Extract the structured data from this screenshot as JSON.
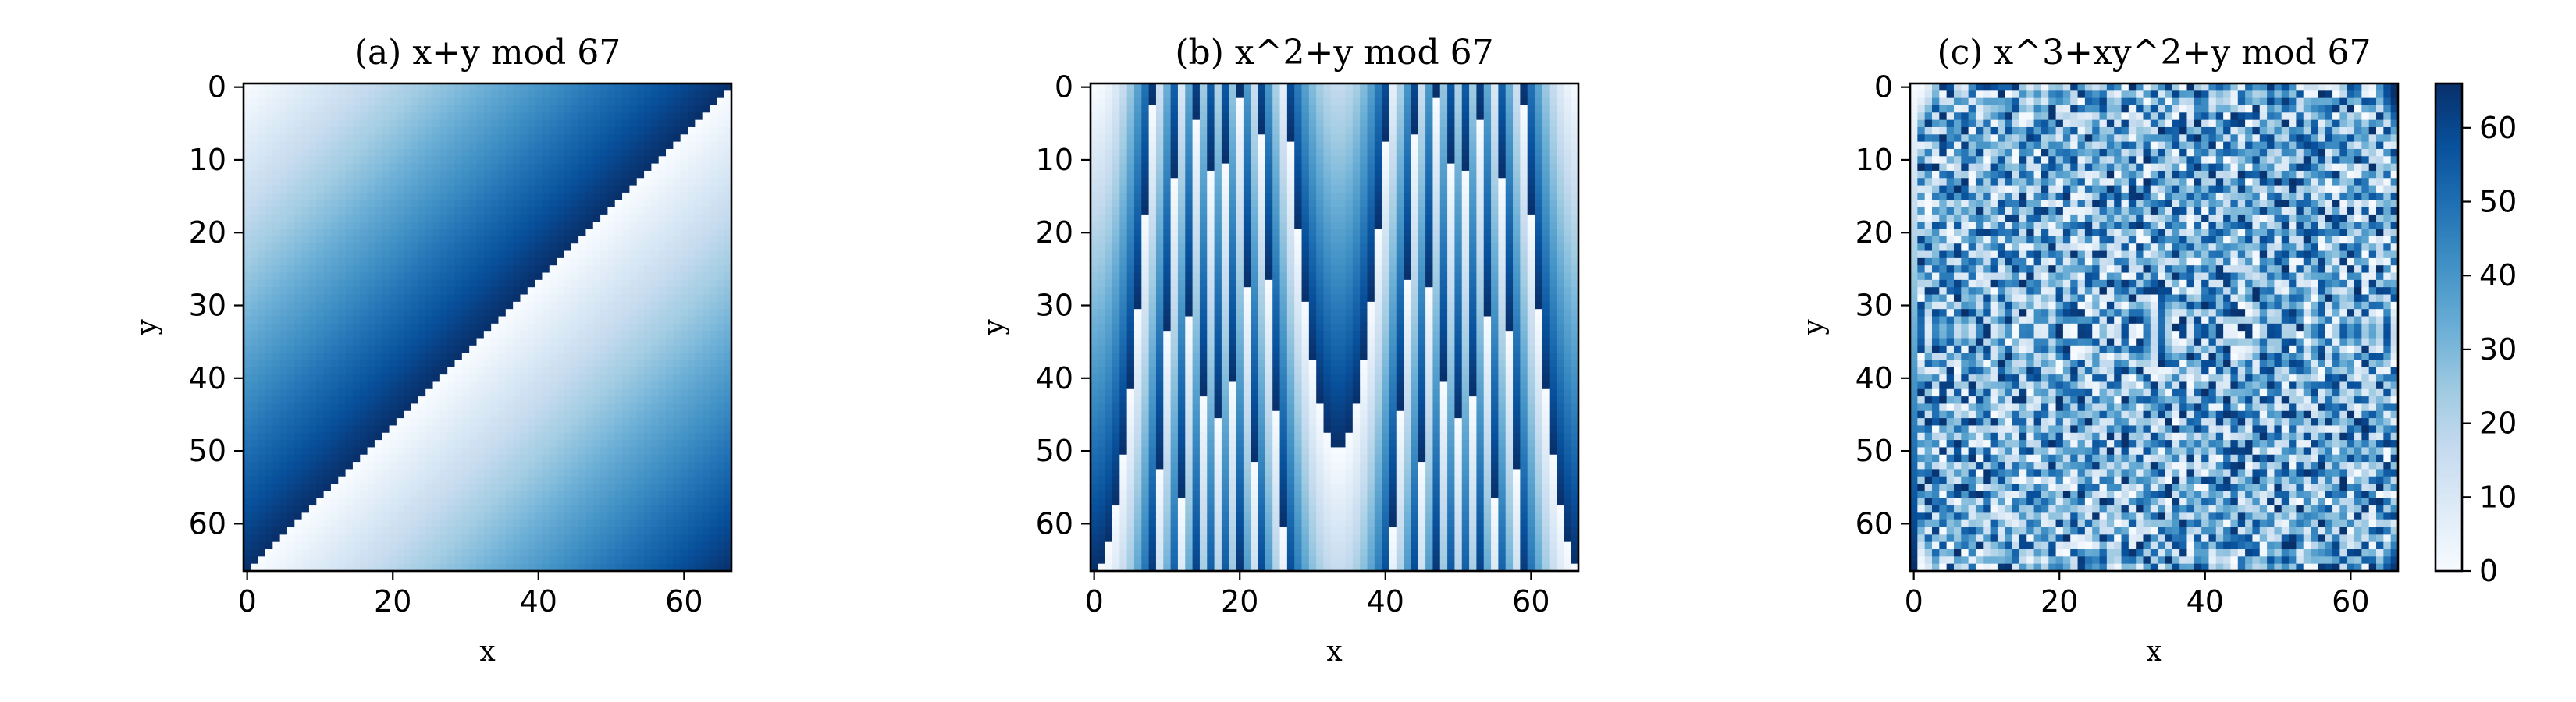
{
  "chart_data": [
    {
      "type": "heatmap",
      "title": "(a) x+y mod 67",
      "xlabel": "x",
      "ylabel": "y",
      "formula": "x+y",
      "modulus": 67,
      "xlim": [
        0,
        66
      ],
      "ylim": [
        66,
        0
      ],
      "xticks": [
        0,
        20,
        40,
        60
      ],
      "yticks": [
        0,
        10,
        20,
        30,
        40,
        50,
        60
      ],
      "colormap": "Blues"
    },
    {
      "type": "heatmap",
      "title": "(b) x^2+y mod 67",
      "xlabel": "x",
      "ylabel": "y",
      "formula": "x^2+y",
      "modulus": 67,
      "xlim": [
        0,
        66
      ],
      "ylim": [
        66,
        0
      ],
      "xticks": [
        0,
        20,
        40,
        60
      ],
      "yticks": [
        0,
        10,
        20,
        30,
        40,
        50,
        60
      ],
      "colormap": "Blues"
    },
    {
      "type": "heatmap",
      "title": "(c) x^3+xy^2+y mod 67",
      "xlabel": "x",
      "ylabel": "y",
      "formula": "x^3+xy^2+y",
      "modulus": 67,
      "xlim": [
        0,
        66
      ],
      "ylim": [
        66,
        0
      ],
      "xticks": [
        0,
        20,
        40,
        60
      ],
      "yticks": [
        0,
        10,
        20,
        30,
        40,
        50,
        60
      ],
      "colormap": "Blues"
    }
  ],
  "colorbar": {
    "range": [
      0,
      66
    ],
    "ticks": [
      0,
      10,
      20,
      30,
      40,
      50,
      60
    ],
    "colormap": "Blues"
  },
  "colors": {
    "low": "#f7fbff",
    "high": "#08306b"
  }
}
